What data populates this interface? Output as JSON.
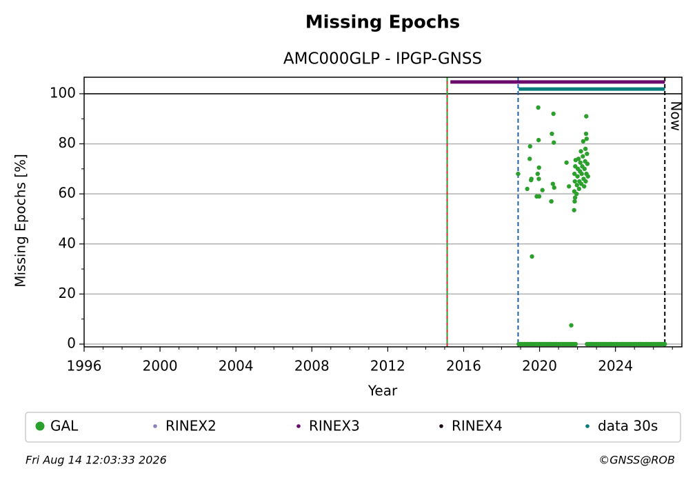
{
  "chart_data": {
    "type": "scatter",
    "title": "Missing Epochs",
    "subtitle": "AMC000GLP - IPGP-GNSS",
    "xlabel": "Year",
    "ylabel": "Missing Epochs [%]",
    "xlim": [
      1996,
      2027.5
    ],
    "ylim": [
      -1.1,
      106.6
    ],
    "xticks": [
      1996,
      2000,
      2004,
      2008,
      2012,
      2016,
      2020,
      2024
    ],
    "xminorticks": [
      1997,
      1998,
      1999,
      2001,
      2002,
      2003,
      2005,
      2006,
      2007,
      2009,
      2010,
      2011,
      2013,
      2014,
      2015,
      2017,
      2018,
      2019,
      2021,
      2022,
      2023,
      2025,
      2026,
      2027
    ],
    "yticks": [
      0,
      20,
      40,
      60,
      80,
      100
    ],
    "yminorticks": [
      10,
      30,
      50,
      70,
      90
    ],
    "grid": true,
    "hlines": [
      100
    ],
    "vlines": [
      {
        "x": 2015.13,
        "color": "#d62728",
        "style": "solid"
      },
      {
        "x": 2015.13,
        "color": "#2ca02c",
        "style": "dashed"
      },
      {
        "x": 2018.87,
        "color": "#1f5fa8",
        "style": "dashed"
      },
      {
        "x": 2026.6,
        "color": "#000000",
        "style": "dashed"
      }
    ],
    "annotations": [
      {
        "text": "Now",
        "x": 2026.6,
        "y": 98
      }
    ],
    "series": [
      {
        "name": "GAL",
        "color": "#2ca02c",
        "style": "dot",
        "x": [
          2018.87,
          2019.35,
          2019.5,
          2019.48,
          2019.55,
          2019.57,
          2019.6,
          2019.85,
          2019.93,
          2019.95,
          2019.97,
          2019.96,
          2019.9,
          2019.98,
          2020.15,
          2020.65,
          2020.73,
          2020.75,
          2020.7,
          2020.77,
          2020.62,
          2021.42,
          2021.55,
          2021.67,
          2021.82,
          2021.85,
          2021.87,
          2021.83,
          2021.86,
          2021.84,
          2021.88,
          2021.9,
          2021.95,
          2021.97,
          2022.0,
          2022.02,
          2022.05,
          2022.08,
          2022.1,
          2022.13,
          2022.15,
          2022.18,
          2022.2,
          2022.22,
          2022.25,
          2022.28,
          2022.3,
          2022.32,
          2022.35,
          2022.37,
          2022.4,
          2022.42,
          2022.45,
          2022.46,
          2022.48,
          2022.5,
          2022.52,
          2022.47,
          2022.43,
          2022.55,
          2018.9,
          2019.0,
          2019.1,
          2019.2,
          2019.3,
          2019.4,
          2019.5,
          2019.6,
          2019.7,
          2019.8,
          2019.9,
          2020.0,
          2020.1,
          2020.2,
          2020.3,
          2020.4,
          2020.5,
          2020.6,
          2020.7,
          2020.8,
          2020.9,
          2021.0,
          2021.1,
          2021.2,
          2021.3,
          2021.4,
          2021.5,
          2021.6,
          2021.7,
          2021.8,
          2021.9,
          2022.5,
          2022.6,
          2022.7,
          2022.8,
          2022.9,
          2023.0,
          2023.1,
          2023.2,
          2023.3,
          2023.4,
          2023.5,
          2023.6,
          2023.7,
          2023.8,
          2023.9,
          2024.0,
          2024.1,
          2024.2,
          2024.3,
          2024.4,
          2024.5,
          2024.6,
          2024.7,
          2024.8,
          2024.9,
          2025.0,
          2025.1,
          2025.2,
          2025.3,
          2025.4,
          2025.5,
          2025.6,
          2025.7,
          2025.8,
          2025.9,
          2026.0,
          2026.1,
          2026.2,
          2026.3,
          2026.4,
          2026.5,
          2026.6
        ],
        "values": [
          68,
          62,
          79,
          74,
          65.5,
          66,
          35,
          59,
          94.5,
          81.5,
          70.5,
          66,
          68,
          59,
          61.5,
          84,
          92,
          80.5,
          64,
          62.5,
          57,
          72.5,
          63,
          7.5,
          53.5,
          57,
          58.5,
          61,
          65,
          68,
          71,
          73.5,
          60,
          63.5,
          67,
          70,
          74,
          62,
          65,
          69,
          72.5,
          77,
          64,
          68,
          71,
          75,
          81,
          66,
          63,
          70,
          73,
          78,
          84,
          91,
          82,
          76,
          72,
          68,
          65,
          67,
          0,
          0,
          0,
          0,
          0,
          0,
          0,
          0,
          0,
          0,
          0,
          0,
          0,
          0,
          0,
          0,
          0,
          0,
          0,
          0,
          0,
          0,
          0,
          0,
          0,
          0,
          0,
          0,
          0,
          0,
          0,
          0,
          0,
          0,
          0,
          0,
          0,
          0,
          0,
          0,
          0,
          0,
          0,
          0,
          0,
          0,
          0,
          0,
          0,
          0,
          0,
          0,
          0,
          0,
          0,
          0,
          0,
          0,
          0,
          0,
          0,
          0,
          0,
          0,
          0,
          0,
          0,
          0,
          0,
          0,
          0,
          0,
          0
        ]
      },
      {
        "name": "RINEX2",
        "color": "#8c7fbf",
        "style": "line",
        "x": [],
        "values": []
      },
      {
        "name": "RINEX3",
        "color": "#6a0a6a",
        "style": "line",
        "x": [
          2015.3,
          2026.6
        ],
        "values": [
          104.7,
          104.7
        ]
      },
      {
        "name": "RINEX4",
        "color": "#1a0a1a",
        "style": "line",
        "x": [],
        "values": []
      },
      {
        "name": "data 30s",
        "color": "#007a7a",
        "style": "line",
        "x": [
          2018.9,
          2026.6
        ],
        "values": [
          101.9,
          101.9
        ]
      }
    ],
    "footnote_left": "Fri Aug 14 12:03:33 2026",
    "footnote_right": "©GNSS@ROB"
  }
}
